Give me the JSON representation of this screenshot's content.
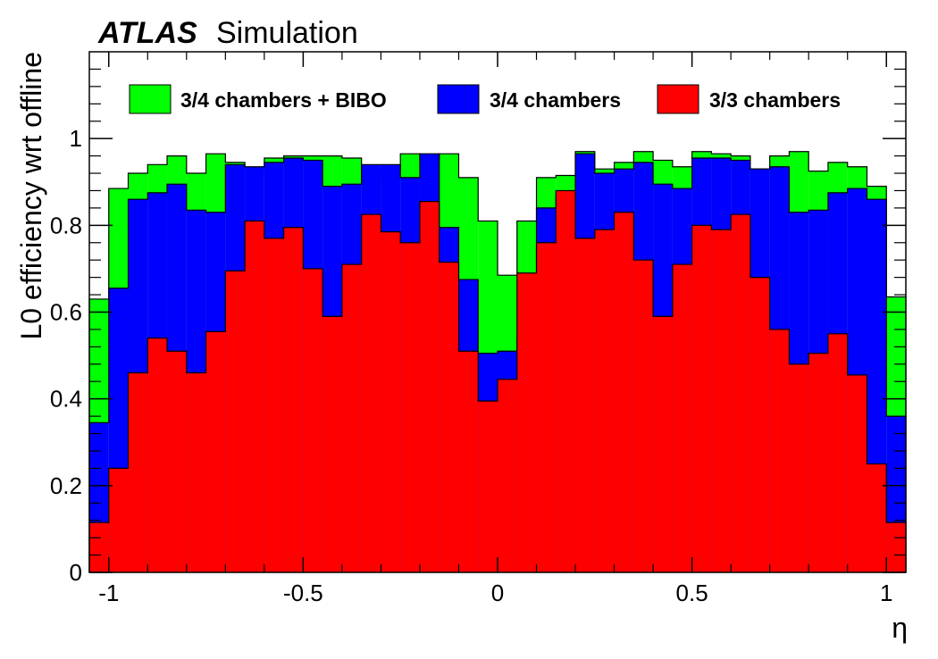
{
  "chart_data": {
    "type": "histogram",
    "experiment": "ATLAS",
    "experiment_tag": "Simulation",
    "xlabel": "η",
    "ylabel": "L0 efficiency wrt offline",
    "xlim": [
      -1.05,
      1.05
    ],
    "ylim": [
      0,
      1.2
    ],
    "x_ticks": [
      -1,
      -0.5,
      0,
      0.5,
      1
    ],
    "x_tick_labels": [
      "-1",
      "-0.5",
      "0",
      "0.5",
      "1"
    ],
    "y_ticks": [
      0,
      0.2,
      0.4,
      0.6,
      0.8,
      1
    ],
    "y_tick_labels": [
      "0",
      "0.2",
      "0.4",
      "0.6",
      "0.8",
      "1"
    ],
    "bin_edges": [
      -1.05,
      -1.0,
      -0.95,
      -0.9,
      -0.85,
      -0.8,
      -0.75,
      -0.7,
      -0.65,
      -0.6,
      -0.55,
      -0.5,
      -0.45,
      -0.4,
      -0.35,
      -0.3,
      -0.25,
      -0.2,
      -0.15,
      -0.1,
      -0.05,
      0.0,
      0.05,
      0.1,
      0.15,
      0.2,
      0.25,
      0.3,
      0.35,
      0.4,
      0.45,
      0.5,
      0.55,
      0.6,
      0.65,
      0.7,
      0.75,
      0.8,
      0.85,
      0.9,
      0.95,
      1.0,
      1.05
    ],
    "legend_placement": "top",
    "series": [
      {
        "name": "3/4 chambers + BIBO",
        "color": "#00ff00",
        "values": [
          0.63,
          0.885,
          0.92,
          0.94,
          0.96,
          0.92,
          0.965,
          0.945,
          0.93,
          0.955,
          0.96,
          0.96,
          0.96,
          0.955,
          0.91,
          0.93,
          0.965,
          0.95,
          0.965,
          0.91,
          0.81,
          0.685,
          0.81,
          0.91,
          0.915,
          0.97,
          0.93,
          0.945,
          0.97,
          0.95,
          0.935,
          0.97,
          0.965,
          0.96,
          0.93,
          0.96,
          0.97,
          0.925,
          0.945,
          0.935,
          0.89,
          0.635
        ]
      },
      {
        "name": "3/4 chambers",
        "color": "#0000ff",
        "values": [
          0.345,
          0.655,
          0.86,
          0.875,
          0.895,
          0.835,
          0.83,
          0.94,
          0.935,
          0.945,
          0.955,
          0.95,
          0.89,
          0.895,
          0.94,
          0.94,
          0.91,
          0.965,
          0.795,
          0.675,
          0.505,
          0.51,
          0.54,
          0.84,
          0.865,
          0.965,
          0.92,
          0.93,
          0.945,
          0.895,
          0.885,
          0.955,
          0.955,
          0.95,
          0.93,
          0.935,
          0.83,
          0.835,
          0.875,
          0.885,
          0.86,
          0.36
        ]
      },
      {
        "name": "3/3 chambers",
        "color": "#ff0000",
        "values": [
          0.115,
          0.24,
          0.46,
          0.54,
          0.51,
          0.46,
          0.555,
          0.695,
          0.81,
          0.77,
          0.795,
          0.7,
          0.59,
          0.71,
          0.825,
          0.785,
          0.76,
          0.855,
          0.715,
          0.51,
          0.395,
          0.445,
          0.69,
          0.76,
          0.88,
          0.77,
          0.79,
          0.83,
          0.72,
          0.59,
          0.71,
          0.8,
          0.79,
          0.825,
          0.68,
          0.56,
          0.48,
          0.505,
          0.55,
          0.455,
          0.25,
          0.115
        ]
      }
    ]
  }
}
